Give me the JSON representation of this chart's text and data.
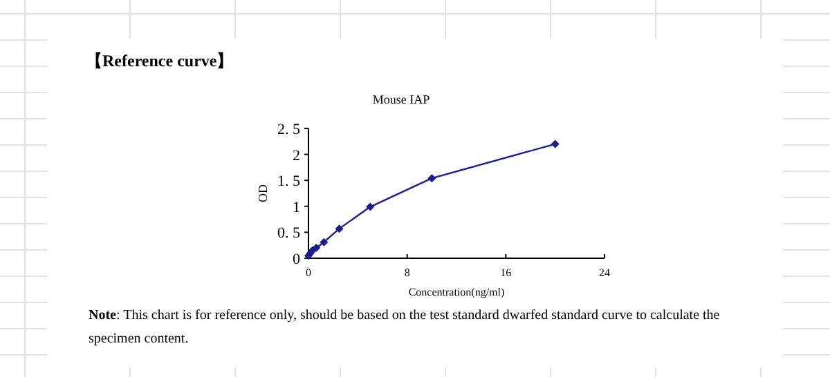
{
  "chart_data": {
    "type": "line",
    "title": "【Reference curve】",
    "subtitle": "Mouse IAP",
    "xlabel": "Concentration(ng/ml)",
    "ylabel": "OD",
    "annotations": [
      "**Note**: This chart is for reference only, should be based on the test standard dwarfed standard curve to calculate the specimen content."
    ],
    "x": [
      0,
      0.156,
      0.3125,
      0.625,
      1.25,
      2.5,
      5,
      10,
      20
    ],
    "series": [
      {
        "color": "#1c1c8c",
        "values": [
          0.05,
          0.1,
          0.15,
          0.2,
          0.31,
          0.57,
          0.99,
          1.54,
          2.2
        ]
      }
    ],
    "xlim": [
      0,
      24
    ],
    "xticks": [
      0,
      8,
      16,
      24
    ],
    "ylim": [
      0,
      2.5
    ],
    "yticks": [
      0,
      {
        "value": 0.5,
        "label": "0. 5"
      },
      1,
      {
        "value": 1.5,
        "label": "1. 5"
      },
      2,
      {
        "value": 2.5,
        "label": "2. 5"
      }
    ],
    "grid": false,
    "marker": "diamond",
    "line_style": "solid"
  }
}
